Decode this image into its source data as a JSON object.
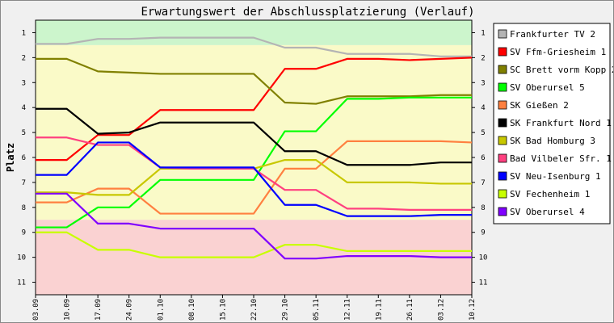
{
  "chart_data": {
    "type": "line",
    "title": "Erwartungswert der Abschlussplatzierung (Verlauf)",
    "ylabel": "Platz",
    "xlabel": "",
    "categories": [
      "03.09",
      "10.09",
      "17.09",
      "24.09",
      "01.10",
      "08.10",
      "15.10",
      "22.10",
      "29.10",
      "05.11",
      "12.11",
      "19.11",
      "26.11",
      "03.12",
      "10.12"
    ],
    "yticks": [
      "1",
      "2",
      "3",
      "4",
      "5",
      "6",
      "7",
      "8",
      "9",
      "10",
      "11"
    ],
    "ylim": [
      0.5,
      11.5
    ],
    "y_reversed": true,
    "grid": false,
    "legend_position": "right",
    "zones": [
      {
        "from": 0.5,
        "to": 1.5,
        "color": "#ccf5cc"
      },
      {
        "from": 1.5,
        "to": 8.5,
        "color": "#fafac8"
      },
      {
        "from": 8.5,
        "to": 11.5,
        "color": "#fad2d2"
      }
    ],
    "series": [
      {
        "name": "Frankfurter TV 2",
        "color": "#b4b4b4",
        "values": [
          1.45,
          1.45,
          1.25,
          1.25,
          1.2,
          1.2,
          1.2,
          1.2,
          1.6,
          1.6,
          1.85,
          1.85,
          1.85,
          1.95,
          1.95
        ]
      },
      {
        "name": "SV Ffm-Griesheim 1",
        "color": "#ff0000",
        "values": [
          6.1,
          6.1,
          5.1,
          5.1,
          4.1,
          4.1,
          4.1,
          4.1,
          2.45,
          2.45,
          2.05,
          2.05,
          2.1,
          2.05,
          2.0
        ]
      },
      {
        "name": "SC Brett vorm Kopp 2",
        "color": "#808000",
        "values": [
          2.05,
          2.05,
          2.55,
          2.6,
          2.65,
          2.65,
          2.65,
          2.65,
          3.8,
          3.85,
          3.55,
          3.55,
          3.55,
          3.5,
          3.5
        ]
      },
      {
        "name": "SV Oberursel 5",
        "color": "#00ff00",
        "values": [
          8.8,
          8.8,
          8.0,
          8.0,
          6.9,
          6.9,
          6.9,
          6.9,
          4.95,
          4.95,
          3.65,
          3.65,
          3.6,
          3.6,
          3.6
        ]
      },
      {
        "name": "SK Gießen 2",
        "color": "#ff8040",
        "values": [
          7.8,
          7.8,
          7.25,
          7.25,
          8.25,
          8.25,
          8.25,
          8.25,
          6.45,
          6.45,
          5.35,
          5.35,
          5.35,
          5.35,
          5.4
        ]
      },
      {
        "name": "SK Frankfurt Nord 1",
        "color": "#000000",
        "values": [
          4.05,
          4.05,
          5.05,
          5.0,
          4.6,
          4.6,
          4.6,
          4.6,
          5.75,
          5.75,
          6.3,
          6.3,
          6.3,
          6.2,
          6.2
        ]
      },
      {
        "name": "SK Bad Homburg 3",
        "color": "#c8c800",
        "values": [
          7.4,
          7.4,
          7.5,
          7.5,
          6.45,
          6.45,
          6.45,
          6.45,
          6.1,
          6.1,
          7.0,
          7.0,
          7.0,
          7.05,
          7.05
        ]
      },
      {
        "name": "Bad Vilbeler Sfr. 1",
        "color": "#ff4080",
        "values": [
          5.2,
          5.2,
          5.5,
          5.5,
          6.4,
          6.45,
          6.45,
          6.45,
          7.3,
          7.3,
          8.05,
          8.05,
          8.1,
          8.1,
          8.1
        ]
      },
      {
        "name": "SV Neu-Isenburg 1",
        "color": "#0000ff",
        "values": [
          6.7,
          6.7,
          5.4,
          5.4,
          6.4,
          6.4,
          6.4,
          6.4,
          7.9,
          7.9,
          8.35,
          8.35,
          8.35,
          8.3,
          8.3
        ]
      },
      {
        "name": "SV Fechenheim 1",
        "color": "#c8ff00",
        "values": [
          9.0,
          9.0,
          9.7,
          9.7,
          10.0,
          10.0,
          10.0,
          10.0,
          9.5,
          9.5,
          9.75,
          9.75,
          9.75,
          9.75,
          9.75
        ]
      },
      {
        "name": "SV Oberursel 4",
        "color": "#8000ff",
        "values": [
          7.45,
          7.45,
          8.65,
          8.65,
          8.85,
          8.85,
          8.85,
          8.85,
          10.05,
          10.05,
          9.95,
          9.95,
          9.95,
          10.0,
          10.0
        ]
      }
    ]
  }
}
